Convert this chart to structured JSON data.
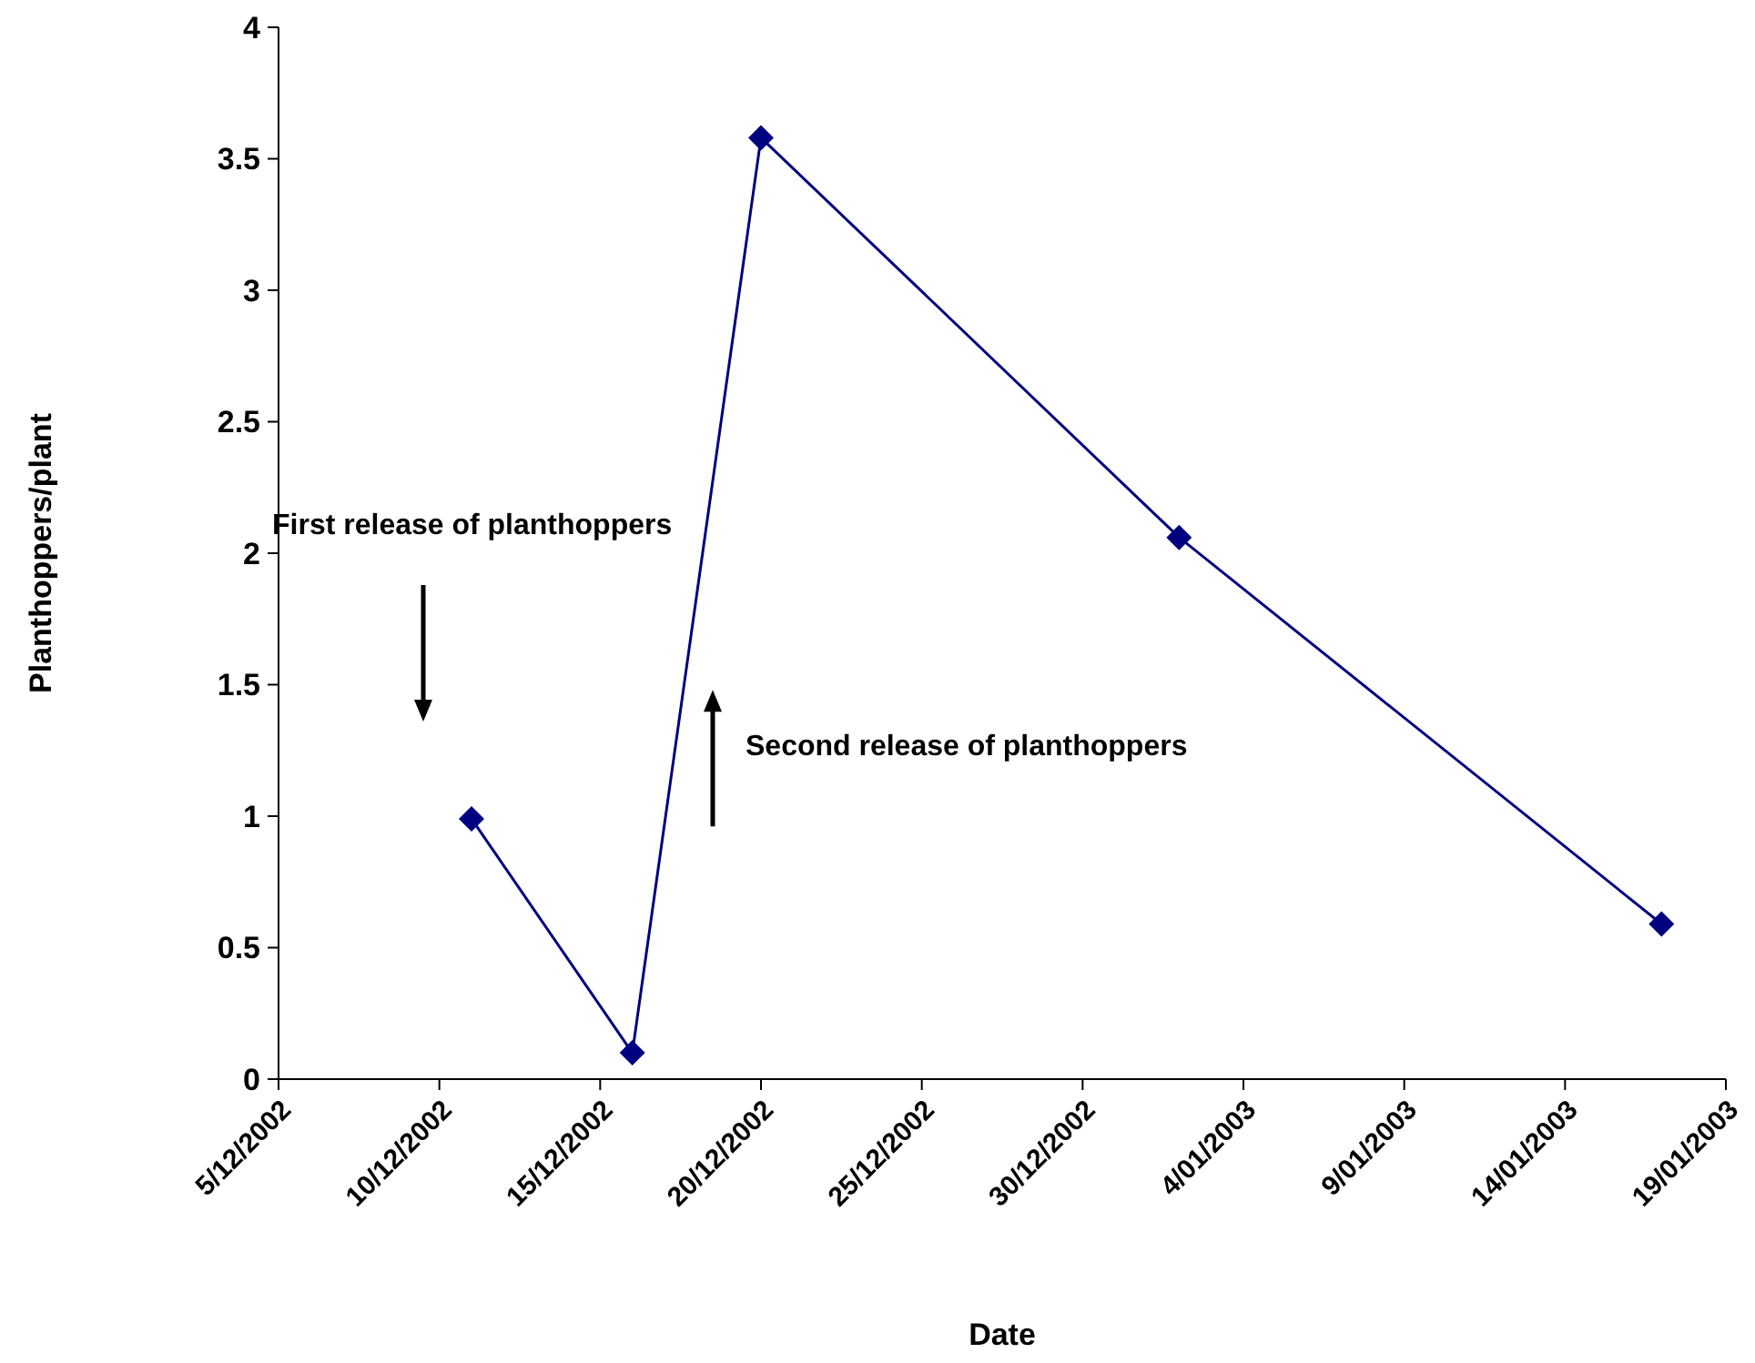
{
  "chart_data": {
    "type": "line",
    "xlabel": "Date",
    "ylabel": "Planthoppers/plant",
    "x": [
      "2002-12-11",
      "2002-12-16",
      "2002-12-20",
      "2003-01-02",
      "2003-01-17"
    ],
    "series": [
      {
        "color": "#000080",
        "values": [
          0.99,
          0.1,
          3.58,
          2.06,
          0.59
        ]
      }
    ],
    "marker": "diamond",
    "line_style": "solid",
    "grid": false,
    "xlim": [
      "2002-12-05",
      "2003-01-19"
    ],
    "xticks": [
      {
        "value": "2002-12-05",
        "label": "5/12/2002"
      },
      {
        "value": "2002-12-10",
        "label": "10/12/2002"
      },
      {
        "value": "2002-12-15",
        "label": "15/12/2002"
      },
      {
        "value": "2002-12-20",
        "label": "20/12/2002"
      },
      {
        "value": "2002-12-25",
        "label": "25/12/2002"
      },
      {
        "value": "2002-12-30",
        "label": "30/12/2002"
      },
      {
        "value": "2003-01-04",
        "label": "4/01/2003"
      },
      {
        "value": "2003-01-09",
        "label": "9/01/2003"
      },
      {
        "value": "2003-01-14",
        "label": "14/01/2003"
      },
      {
        "value": "2003-01-19",
        "label": "19/01/2003"
      }
    ],
    "ylim": [
      0,
      4
    ],
    "yticks": [
      0,
      0.5,
      1,
      1.5,
      2,
      2.5,
      3,
      3.5,
      4
    ],
    "annotations": [
      "First release of planthoppers",
      "Second release of planthoppers"
    ]
  }
}
